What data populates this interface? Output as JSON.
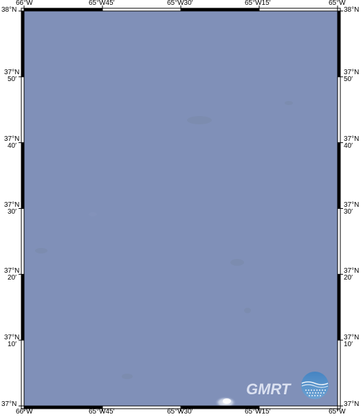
{
  "map": {
    "title": "",
    "ocean_color": "#8090b8",
    "frame_color": "#000000",
    "lon_labels_top": [
      "66°W",
      "65°W45′",
      "65°W30′",
      "65°W15′",
      "65°W"
    ],
    "lon_labels_bottom": [
      "66°W",
      "65°W45′",
      "65°W30′",
      "65°W15′",
      "65°W"
    ],
    "lat_labels": [
      {
        "deg": "38°N",
        "min": ""
      },
      {
        "deg": "37°N",
        "min": "50′"
      },
      {
        "deg": "37°N",
        "min": "40′"
      },
      {
        "deg": "37°N",
        "min": "30′"
      },
      {
        "deg": "37°N",
        "min": "20′"
      },
      {
        "deg": "37°N",
        "min": "10′"
      },
      {
        "deg": "37°N",
        "min": ""
      }
    ],
    "lon_range": [
      "66°W",
      "65°W"
    ],
    "lat_range": [
      "37°N",
      "38°N"
    ],
    "watermark": "GMRT"
  }
}
